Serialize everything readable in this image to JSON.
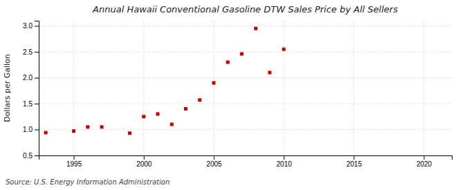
{
  "chart_data": {
    "type": "scatter",
    "title": "Annual Hawaii Conventional Gasoline DTW Sales Price by All Sellers",
    "ylabel": "Dollars per Gallon",
    "annotations": [
      "Source: U.S. Energy Information Administration"
    ],
    "x": [
      1993,
      1995,
      1996,
      1997,
      1999,
      2000,
      2001,
      2002,
      2003,
      2004,
      2005,
      2006,
      2007,
      2008,
      2009,
      2010
    ],
    "values": [
      0.94,
      0.97,
      1.05,
      1.05,
      0.93,
      1.25,
      1.3,
      1.1,
      1.4,
      1.57,
      1.9,
      2.3,
      2.46,
      2.95,
      2.1,
      2.55
    ],
    "color": "#cc0000",
    "marker": "square",
    "xlim": [
      1992.5,
      2022
    ],
    "ylim": [
      0.5,
      3.1
    ],
    "xticks": [
      1995,
      2000,
      2005,
      2010,
      2015,
      2020
    ],
    "yticks": [
      0.5,
      {
        "value": 1.0,
        "label": "1.0"
      },
      1.5,
      {
        "value": 2.0,
        "label": "2.0"
      },
      2.5,
      {
        "value": 3.0,
        "label": "3.0"
      }
    ],
    "grid": true
  }
}
